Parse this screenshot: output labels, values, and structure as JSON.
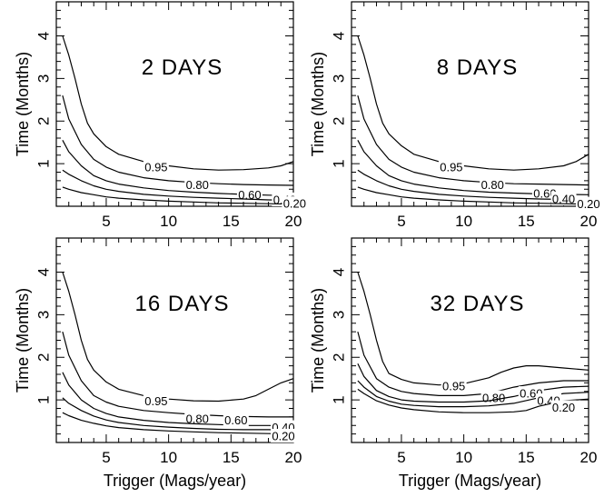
{
  "chart_data": [
    {
      "type": "line",
      "title": "2 DAYS",
      "xlabel": "",
      "ylabel": "Time (Months)",
      "xlim": [
        1,
        20
      ],
      "ylim": [
        0,
        4.8
      ],
      "xticks": [
        "5",
        "10",
        "15",
        "20"
      ],
      "yticks": [
        "1",
        "2",
        "3",
        "4"
      ],
      "series": [
        {
          "name": "0.95",
          "x": [
            1.5,
            2,
            2.5,
            3,
            3.5,
            4,
            5,
            6,
            8,
            10,
            12,
            14,
            16,
            18,
            19,
            20
          ],
          "y": [
            4.0,
            3.55,
            3.0,
            2.4,
            1.95,
            1.7,
            1.4,
            1.22,
            1.05,
            0.95,
            0.88,
            0.85,
            0.86,
            0.9,
            0.95,
            1.05
          ],
          "label_x": 9.0,
          "label_y": 0.92
        },
        {
          "name": "0.80",
          "x": [
            1.5,
            2,
            3,
            4,
            5,
            6,
            8,
            10,
            12,
            14,
            16,
            18,
            20
          ],
          "y": [
            2.6,
            2.05,
            1.45,
            1.1,
            0.92,
            0.8,
            0.67,
            0.6,
            0.56,
            0.53,
            0.51,
            0.5,
            0.49
          ],
          "label_x": 12.3,
          "label_y": 0.5
        },
        {
          "name": "0.60",
          "x": [
            1.5,
            2,
            3,
            4,
            5,
            6,
            8,
            10,
            12,
            14,
            16,
            18,
            20
          ],
          "y": [
            1.55,
            1.28,
            0.95,
            0.72,
            0.6,
            0.52,
            0.43,
            0.37,
            0.33,
            0.3,
            0.28,
            0.26,
            0.25
          ],
          "label_x": 16.5,
          "label_y": 0.27
        },
        {
          "name": "0.40",
          "x": [
            1.5,
            2,
            3,
            4,
            5,
            6,
            8,
            10,
            12,
            14,
            16,
            18,
            20
          ],
          "y": [
            0.85,
            0.75,
            0.6,
            0.48,
            0.4,
            0.35,
            0.28,
            0.24,
            0.21,
            0.19,
            0.17,
            0.15,
            0.14
          ],
          "label_x": 19.3,
          "label_y": 0.15
        },
        {
          "name": "0.20",
          "x": [
            1.5,
            2,
            3,
            4,
            5,
            6,
            8,
            10,
            12,
            14,
            16,
            18,
            20
          ],
          "y": [
            0.45,
            0.4,
            0.32,
            0.27,
            0.22,
            0.19,
            0.15,
            0.12,
            0.1,
            0.08,
            0.07,
            0.06,
            0.05
          ],
          "label_x": 20.1,
          "label_y": 0.06
        }
      ]
    },
    {
      "type": "line",
      "title": "8 DAYS",
      "xlabel": "",
      "ylabel": "Time (Months)",
      "xlim": [
        1,
        20
      ],
      "ylim": [
        0,
        4.8
      ],
      "xticks": [
        "5",
        "10",
        "15",
        "20"
      ],
      "yticks": [
        "1",
        "2",
        "3",
        "4"
      ],
      "series": [
        {
          "name": "0.95",
          "x": [
            1.5,
            2,
            2.5,
            3,
            3.5,
            4,
            5,
            6,
            8,
            10,
            12,
            14,
            16,
            18,
            19,
            20
          ],
          "y": [
            4.0,
            3.55,
            3.0,
            2.4,
            1.95,
            1.7,
            1.42,
            1.22,
            1.05,
            0.95,
            0.88,
            0.85,
            0.88,
            0.95,
            1.05,
            1.22
          ],
          "label_x": 9.0,
          "label_y": 0.92
        },
        {
          "name": "0.80",
          "x": [
            1.5,
            2,
            3,
            4,
            5,
            6,
            8,
            10,
            12,
            14,
            16,
            18,
            20
          ],
          "y": [
            2.6,
            2.05,
            1.45,
            1.1,
            0.92,
            0.8,
            0.67,
            0.6,
            0.56,
            0.53,
            0.52,
            0.51,
            0.5
          ],
          "label_x": 12.3,
          "label_y": 0.5
        },
        {
          "name": "0.60",
          "x": [
            1.5,
            2,
            3,
            4,
            5,
            6,
            8,
            10,
            12,
            14,
            16,
            18,
            20
          ],
          "y": [
            1.55,
            1.28,
            0.95,
            0.72,
            0.6,
            0.52,
            0.43,
            0.37,
            0.33,
            0.31,
            0.29,
            0.28,
            0.27
          ],
          "label_x": 16.5,
          "label_y": 0.3
        },
        {
          "name": "0.40",
          "x": [
            1.5,
            2,
            3,
            4,
            5,
            6,
            8,
            10,
            12,
            14,
            16,
            18,
            20
          ],
          "y": [
            0.85,
            0.75,
            0.6,
            0.48,
            0.4,
            0.35,
            0.28,
            0.24,
            0.21,
            0.19,
            0.17,
            0.16,
            0.15
          ],
          "label_x": 18.0,
          "label_y": 0.17
        },
        {
          "name": "0.20",
          "x": [
            1.5,
            2,
            3,
            4,
            5,
            6,
            8,
            10,
            12,
            14,
            16,
            18,
            20
          ],
          "y": [
            0.45,
            0.4,
            0.32,
            0.27,
            0.22,
            0.19,
            0.15,
            0.12,
            0.1,
            0.08,
            0.07,
            0.06,
            0.05
          ],
          "label_x": 20.0,
          "label_y": 0.05
        }
      ]
    },
    {
      "type": "line",
      "title": "16 DAYS",
      "xlabel": "Trigger (Mags/year)",
      "ylabel": "Time (Months)",
      "xlim": [
        1,
        20
      ],
      "ylim": [
        0,
        4.8
      ],
      "xticks": [
        "5",
        "10",
        "15",
        "20"
      ],
      "yticks": [
        "1",
        "2",
        "3",
        "4"
      ],
      "series": [
        {
          "name": "0.95",
          "x": [
            1.5,
            2,
            2.5,
            3,
            3.5,
            4,
            5,
            6,
            8,
            10,
            12,
            14,
            16,
            17,
            18,
            19,
            20
          ],
          "y": [
            4.0,
            3.55,
            3.0,
            2.4,
            1.95,
            1.7,
            1.42,
            1.25,
            1.1,
            1.02,
            0.98,
            0.97,
            1.02,
            1.1,
            1.25,
            1.4,
            1.5
          ],
          "label_x": 9.0,
          "label_y": 0.97
        },
        {
          "name": "0.80",
          "x": [
            1.5,
            2,
            3,
            4,
            5,
            6,
            8,
            10,
            12,
            14,
            16,
            18,
            20
          ],
          "y": [
            2.6,
            2.05,
            1.45,
            1.1,
            0.95,
            0.85,
            0.75,
            0.7,
            0.66,
            0.63,
            0.61,
            0.6,
            0.6
          ],
          "label_x": 12.3,
          "label_y": 0.55
        },
        {
          "name": "0.60",
          "x": [
            1.5,
            2,
            3,
            4,
            5,
            6,
            8,
            10,
            12,
            14,
            16,
            18,
            20
          ],
          "y": [
            1.65,
            1.35,
            1.0,
            0.8,
            0.68,
            0.6,
            0.52,
            0.47,
            0.44,
            0.42,
            0.4,
            0.4,
            0.39
          ],
          "label_x": 15.4,
          "label_y": 0.52
        },
        {
          "name": "0.40",
          "x": [
            1.5,
            2,
            3,
            4,
            5,
            6,
            8,
            10,
            12,
            14,
            16,
            18,
            20
          ],
          "y": [
            1.05,
            0.92,
            0.75,
            0.62,
            0.53,
            0.47,
            0.4,
            0.36,
            0.33,
            0.31,
            0.3,
            0.3,
            0.29
          ],
          "label_x": 19.2,
          "label_y": 0.35
        },
        {
          "name": "0.20",
          "x": [
            1.5,
            2,
            3,
            4,
            5,
            6,
            8,
            10,
            12,
            14,
            16,
            18,
            20
          ],
          "y": [
            0.7,
            0.63,
            0.52,
            0.45,
            0.39,
            0.35,
            0.3,
            0.27,
            0.25,
            0.23,
            0.22,
            0.21,
            0.2
          ],
          "label_x": 19.2,
          "label_y": 0.15
        }
      ]
    },
    {
      "type": "line",
      "title": "32 DAYS",
      "xlabel": "Trigger (Mags/year)",
      "ylabel": "Time (Months)",
      "xlim": [
        1,
        20
      ],
      "ylim": [
        0,
        4.8
      ],
      "xticks": [
        "5",
        "10",
        "15",
        "20"
      ],
      "yticks": [
        "1",
        "2",
        "3",
        "4"
      ],
      "series": [
        {
          "name": "0.95",
          "x": [
            1.5,
            2,
            2.5,
            3,
            3.5,
            4,
            5,
            6,
            8,
            10,
            12,
            13,
            14,
            15,
            16,
            18,
            20
          ],
          "y": [
            4.0,
            3.55,
            3.0,
            2.4,
            1.9,
            1.62,
            1.48,
            1.4,
            1.35,
            1.38,
            1.52,
            1.65,
            1.75,
            1.8,
            1.8,
            1.75,
            1.7
          ],
          "label_x": 9.2,
          "label_y": 1.32
        },
        {
          "name": "0.80",
          "x": [
            1.5,
            2,
            3,
            4,
            5,
            6,
            8,
            10,
            12,
            14,
            16,
            18,
            20
          ],
          "y": [
            2.6,
            2.05,
            1.5,
            1.3,
            1.2,
            1.15,
            1.1,
            1.1,
            1.15,
            1.3,
            1.4,
            1.45,
            1.45
          ],
          "label_x": 12.4,
          "label_y": 1.05
        },
        {
          "name": "0.60",
          "x": [
            1.5,
            2,
            3,
            4,
            5,
            6,
            8,
            10,
            12,
            14,
            16,
            18,
            20
          ],
          "y": [
            1.85,
            1.55,
            1.22,
            1.08,
            1.0,
            0.97,
            0.95,
            0.95,
            0.98,
            1.08,
            1.22,
            1.3,
            1.32
          ],
          "label_x": 15.4,
          "label_y": 1.15
        },
        {
          "name": "0.40",
          "x": [
            1.5,
            2,
            3,
            4,
            5,
            6,
            8,
            10,
            12,
            14,
            16,
            18,
            20
          ],
          "y": [
            1.45,
            1.3,
            1.08,
            0.97,
            0.9,
            0.87,
            0.84,
            0.84,
            0.86,
            0.92,
            1.05,
            1.15,
            1.18
          ],
          "label_x": 16.8,
          "label_y": 0.98
        },
        {
          "name": "0.20",
          "x": [
            1.5,
            2,
            3,
            4,
            5,
            6,
            8,
            10,
            12,
            14,
            15,
            16,
            18,
            20
          ],
          "y": [
            1.25,
            1.15,
            0.98,
            0.88,
            0.81,
            0.77,
            0.72,
            0.7,
            0.7,
            0.72,
            0.75,
            0.85,
            0.98,
            1.02
          ],
          "label_x": 18.0,
          "label_y": 0.82
        }
      ]
    }
  ]
}
